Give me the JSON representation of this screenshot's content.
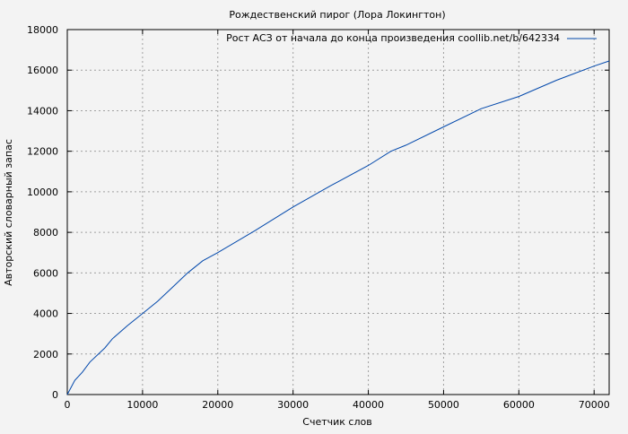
{
  "chart_data": {
    "type": "line",
    "title": "Рождественский пирог (Лора Локингтон)",
    "xlabel": "Счетчик слов",
    "ylabel": "Авторский словарный запас",
    "xlim": [
      0,
      72000
    ],
    "ylim": [
      0,
      18000
    ],
    "xticks": [
      0,
      10000,
      20000,
      30000,
      40000,
      50000,
      60000,
      70000
    ],
    "yticks": [
      0,
      2000,
      4000,
      6000,
      8000,
      10000,
      12000,
      14000,
      16000,
      18000
    ],
    "grid": true,
    "legend_position": "top-right",
    "series": [
      {
        "name": "Рост АСЗ от начала до конца произведения coollib.net/b/642334",
        "color": "#0047ab",
        "x": [
          0,
          1000,
          2000,
          3000,
          5000,
          6000,
          8000,
          10000,
          12000,
          14000,
          16000,
          18000,
          20000,
          25000,
          30000,
          35000,
          40000,
          43000,
          45000,
          50000,
          55000,
          60000,
          65000,
          70000,
          72000
        ],
        "y": [
          0,
          700,
          1100,
          1600,
          2300,
          2750,
          3400,
          4000,
          4600,
          5300,
          6000,
          6600,
          7000,
          8100,
          9250,
          10300,
          11300,
          12000,
          12300,
          13200,
          14100,
          14700,
          15500,
          16200,
          16450
        ]
      }
    ]
  }
}
